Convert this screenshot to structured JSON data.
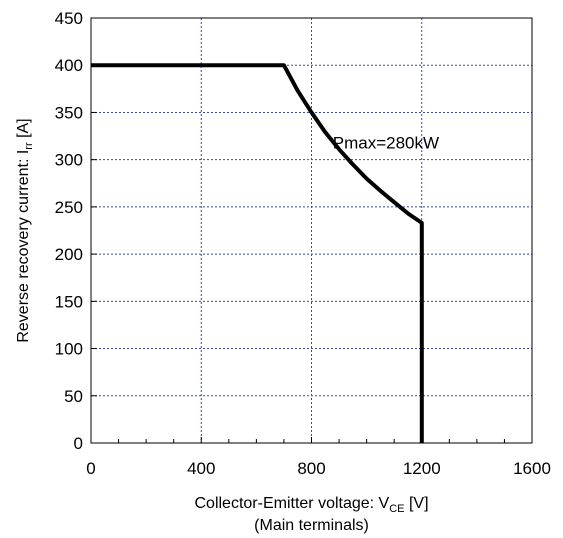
{
  "chart_data": {
    "type": "line",
    "title": "",
    "xlabel": {
      "main": "Collector-Emitter voltage: V",
      "sub": "CE",
      "unit": " [V]",
      "line2": "(Main terminals)"
    },
    "ylabel": {
      "main": "Reverse recovery current: I",
      "sub": "rr",
      "unit": " [A]"
    },
    "xlim": [
      0,
      1600
    ],
    "ylim": [
      0,
      450
    ],
    "xticks": [
      0,
      400,
      800,
      1200,
      1600
    ],
    "xticks_minor": [
      100,
      200,
      300,
      500,
      600,
      700,
      900,
      1000,
      1100,
      1300,
      1400,
      1500
    ],
    "yticks": [
      0,
      50,
      100,
      150,
      200,
      250,
      300,
      350,
      400,
      450
    ],
    "grid": true,
    "annotation": {
      "text": "Pmax=280kW",
      "x": 1070,
      "y": 318
    },
    "series": [
      {
        "name": "",
        "color": "#000000",
        "points": [
          [
            0,
            400
          ],
          [
            700,
            400
          ],
          [
            750,
            373
          ],
          [
            800,
            350
          ],
          [
            850,
            329
          ],
          [
            900,
            311
          ],
          [
            950,
            295
          ],
          [
            1000,
            280
          ],
          [
            1050,
            267
          ],
          [
            1100,
            255
          ],
          [
            1150,
            243
          ],
          [
            1200,
            233
          ],
          [
            1200,
            0
          ]
        ]
      }
    ]
  }
}
